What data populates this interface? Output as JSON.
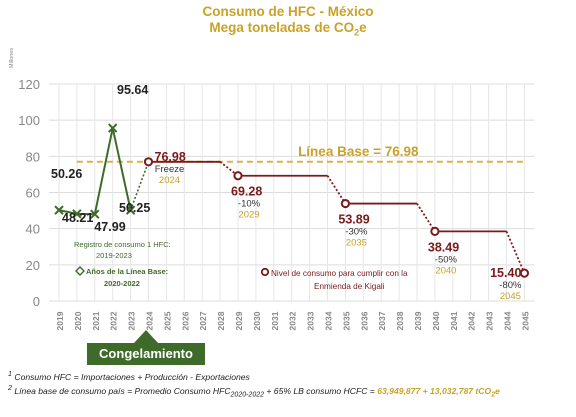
{
  "title_line1": "Consumo de HFC - México",
  "title_line2_prefix": "Mega toneladas de CO",
  "title_line2_sub": "2",
  "title_line2_suffix": "e",
  "congelamiento_label": "Congelamiento",
  "footnote1_num": "1",
  "footnote1": "Consumo HFC = Importaciones + Producción - Exportaciones",
  "footnote2_num": "2",
  "footnote2_a": "Línea base de consumo país = Promedio Consumo HFC",
  "footnote2_sub": "2020-2022",
  "footnote2_b": " +  65% LB consumo HCFC  = ",
  "footnote2_c": "63,949,877  +  13,032,787 tCO",
  "footnote2_c_sub": "2",
  "footnote2_c_end": "e",
  "colors": {
    "title_gold": "#c9a227",
    "historic_green": "#3f6b2a",
    "target_red": "#7a1a1a",
    "baseline_gold": "#d9b24c",
    "congel_green": "#3f6b2a"
  },
  "chart_data": {
    "type": "line",
    "ylabel": "Millones",
    "ylim": [
      0,
      120
    ],
    "yticks": [
      0,
      20,
      40,
      60,
      80,
      100,
      120
    ],
    "categories": [
      "2019",
      "2020",
      "2021",
      "2022",
      "2023",
      "2024",
      "2025",
      "2026",
      "2027",
      "2028",
      "2029",
      "2030",
      "2031",
      "2032",
      "2033",
      "2034",
      "2035",
      "2036",
      "2037",
      "2038",
      "2039",
      "2040",
      "2041",
      "2042",
      "2043",
      "2044",
      "2045"
    ],
    "grid": true,
    "baseline": {
      "label": "Línea Base = 76.98",
      "value": 76.98
    },
    "historic_series": {
      "years": [
        "2019",
        "2020",
        "2021",
        "2022",
        "2023"
      ],
      "values": [
        50.26,
        48.21,
        47.99,
        95.64,
        50.25
      ],
      "labels": [
        "50.26",
        "48.21",
        "47.99",
        "95.64",
        "50.25"
      ]
    },
    "target_series": {
      "points": [
        {
          "year": "2024",
          "value": 76.98,
          "label": "76.98",
          "sub1": "Freeze",
          "sub2": "2024"
        },
        {
          "year": "2029",
          "value": 69.28,
          "label": "69.28",
          "sub1": "-10%",
          "sub2": "2029"
        },
        {
          "year": "2035",
          "value": 53.89,
          "label": "53.89",
          "sub1": "-30%",
          "sub2": "2035"
        },
        {
          "year": "2040",
          "value": 38.49,
          "label": "38.49",
          "sub1": "-50%",
          "sub2": "2040"
        },
        {
          "year": "2045",
          "value": 15.4,
          "label": "15.40",
          "sub1": "-80%",
          "sub2": "2045"
        }
      ]
    },
    "annotations": {
      "registro": "Registro de consumo",
      "registro_sup": "1",
      "registro_b": " HFC:",
      "registro_years": "2019-2023",
      "anios_lb": "Años de la Línea Base:",
      "anios_lb_years": "2020-2022",
      "nivel_line1": "Nivel de consumo para cumplir con la",
      "nivel_line2": "Enmienda de Kigali"
    }
  }
}
